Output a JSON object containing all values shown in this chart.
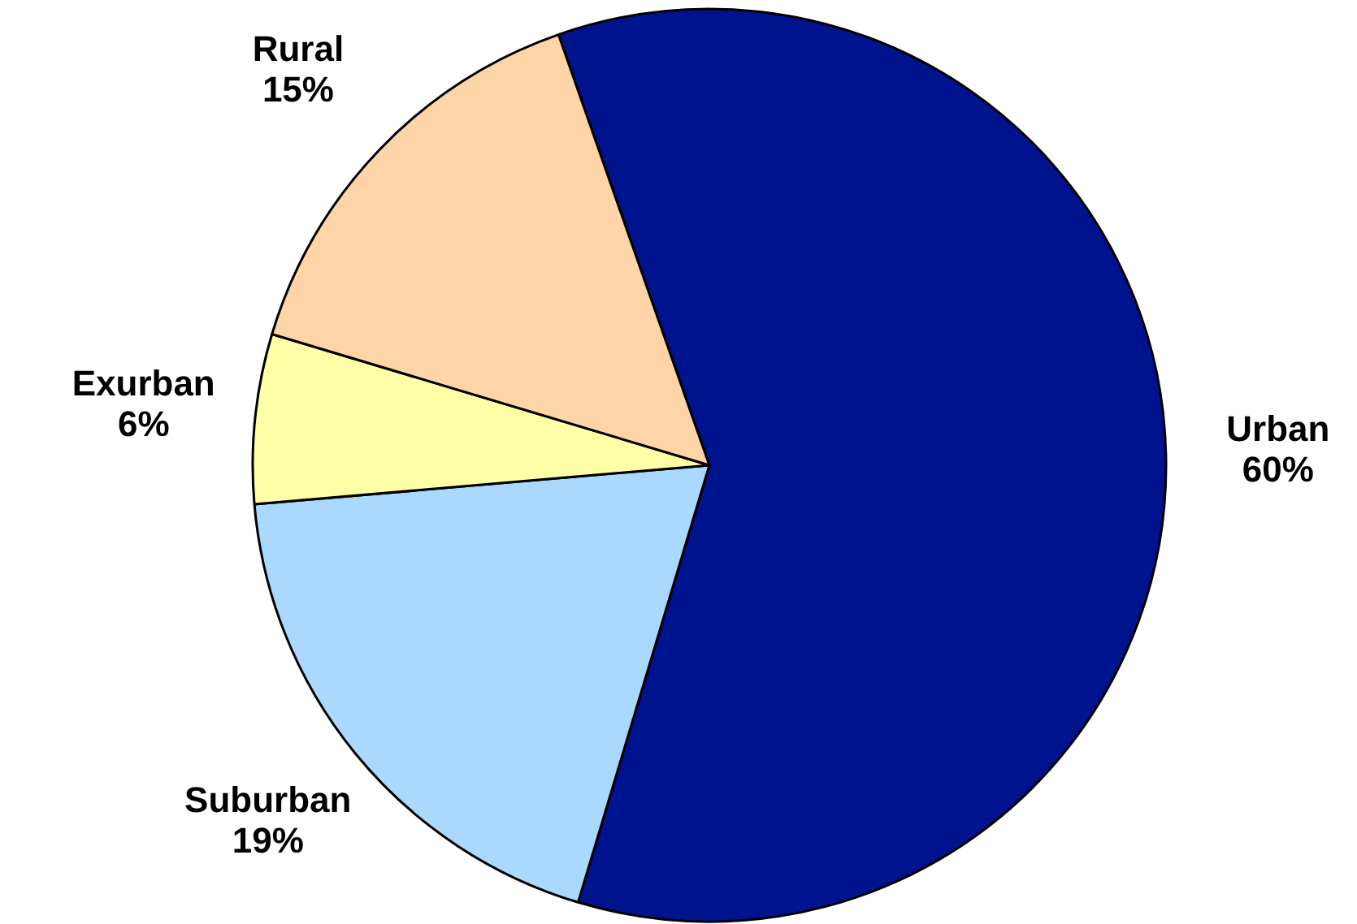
{
  "chart_data": {
    "type": "pie",
    "categories": [
      "Urban",
      "Suburban",
      "Exurban",
      "Rural"
    ],
    "values": [
      60,
      19,
      6,
      15
    ],
    "colors": [
      "#00138f",
      "#aad8ff",
      "#ffffa8",
      "#ffd5a8"
    ],
    "value_labels": [
      "60%",
      "19%",
      "6%",
      "15%"
    ]
  }
}
